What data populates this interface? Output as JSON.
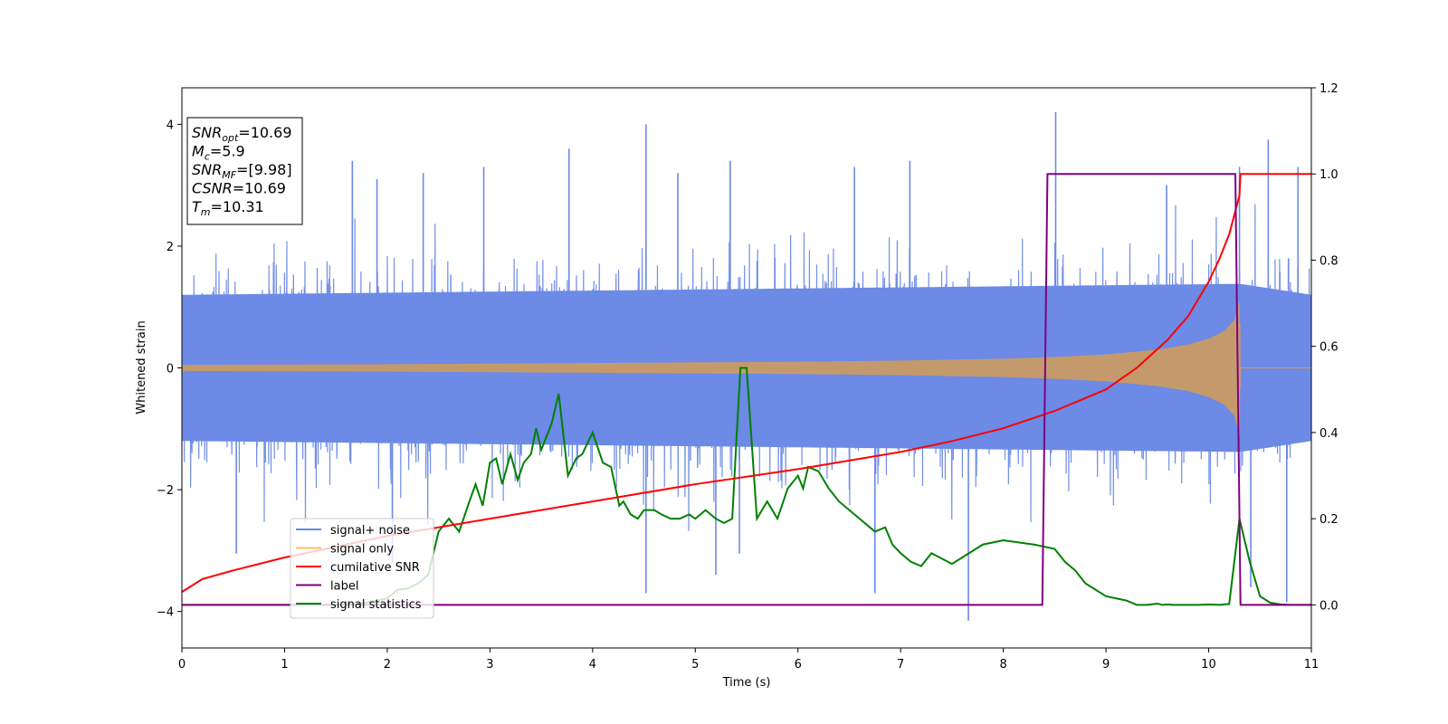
{
  "chart_data": {
    "type": "line",
    "xlabel": "Time (s)",
    "ylabel": "Whitened strain",
    "xlim": [
      0,
      11
    ],
    "ylim": [
      -4.6,
      4.6
    ],
    "y2lim": [
      -0.1,
      1.2
    ],
    "x_ticks": [
      "0",
      "1",
      "2",
      "3",
      "4",
      "5",
      "6",
      "7",
      "8",
      "9",
      "10",
      "11"
    ],
    "y_ticks": [
      "−4",
      "−2",
      "0",
      "2",
      "4"
    ],
    "y2_ticks": [
      "0.0",
      "0.2",
      "0.4",
      "0.6",
      "0.8",
      "1.0",
      "1.2"
    ],
    "info_box": {
      "snr_opt": {
        "main": "SNR",
        "sub": "opt",
        "value": "=10.69"
      },
      "mc": {
        "main": "M",
        "sub": "c",
        "value": "=5.9"
      },
      "snr_mf": {
        "main": "SNR",
        "sub": "MF",
        "value": "=[9.98]"
      },
      "csnr": {
        "main": "CSNR",
        "sub": "",
        "value": "=10.69"
      },
      "tm": {
        "main": "T",
        "sub": "m",
        "value": "=10.31"
      }
    },
    "legend": {
      "placement": "lower-left",
      "entries": [
        "signal+ noise",
        "signal only",
        "cumilative SNR",
        "label",
        "signal statistics"
      ]
    },
    "series": [
      {
        "name": "signal+ noise",
        "axis": "left",
        "color": "#6c8ae6",
        "noise_envelope": {
          "x": [
            0,
            10.31,
            11
          ],
          "upper": [
            2.0,
            2.3,
            2.0
          ],
          "lower": [
            -2.0,
            -2.3,
            -2.0
          ]
        },
        "spikes": [
          {
            "x": 1.66,
            "y": 3.4
          },
          {
            "x": 1.9,
            "y": 3.1
          },
          {
            "x": 2.35,
            "y": 3.2
          },
          {
            "x": 2.94,
            "y": 3.3
          },
          {
            "x": 3.77,
            "y": 3.6
          },
          {
            "x": 4.52,
            "y": 4.0
          },
          {
            "x": 4.83,
            "y": 3.2
          },
          {
            "x": 5.34,
            "y": 3.4
          },
          {
            "x": 6.55,
            "y": 3.3
          },
          {
            "x": 7.09,
            "y": 3.4
          },
          {
            "x": 8.51,
            "y": 4.2
          },
          {
            "x": 9.59,
            "y": 3.0
          },
          {
            "x": 10.3,
            "y": 3.3
          },
          {
            "x": 10.58,
            "y": 3.75
          },
          {
            "x": 10.87,
            "y": 3.3
          },
          {
            "x": 0.53,
            "y": -3.05
          },
          {
            "x": 2.05,
            "y": -3.2
          },
          {
            "x": 4.52,
            "y": -3.7
          },
          {
            "x": 5.2,
            "y": -3.4
          },
          {
            "x": 5.43,
            "y": -3.05
          },
          {
            "x": 6.75,
            "y": -3.7
          },
          {
            "x": 7.66,
            "y": -4.15
          },
          {
            "x": 10.41,
            "y": -3.6
          },
          {
            "x": 10.76,
            "y": -3.85
          }
        ]
      },
      {
        "name": "signal only",
        "axis": "left",
        "color": "#ffbf6b",
        "envelope": {
          "x": [
            0,
            2,
            4,
            6,
            7,
            8,
            8.5,
            9,
            9.5,
            9.8,
            10.0,
            10.15,
            10.25,
            10.3,
            10.31,
            11
          ],
          "amplitude": [
            0.05,
            0.06,
            0.08,
            0.1,
            0.12,
            0.15,
            0.18,
            0.22,
            0.3,
            0.38,
            0.48,
            0.6,
            0.78,
            1.1,
            0.0,
            0.0
          ]
        }
      },
      {
        "name": "cumilative SNR",
        "axis": "right",
        "color": "#ff0000",
        "x": [
          0,
          0.2,
          0.5,
          1,
          2,
          3,
          4,
          5,
          6,
          7,
          7.5,
          8,
          8.5,
          9,
          9.3,
          9.6,
          9.8,
          10.0,
          10.1,
          10.2,
          10.3,
          10.31,
          11
        ],
        "y": [
          0.03,
          0.06,
          0.08,
          0.11,
          0.16,
          0.2,
          0.24,
          0.28,
          0.315,
          0.355,
          0.38,
          0.41,
          0.45,
          0.5,
          0.55,
          0.615,
          0.67,
          0.75,
          0.8,
          0.86,
          0.95,
          1.0,
          1.0
        ]
      },
      {
        "name": "label",
        "axis": "right",
        "color": "#800080",
        "x": [
          0,
          8.38,
          8.43,
          10.26,
          10.31,
          11
        ],
        "y": [
          0.0,
          0.0,
          1.0,
          1.0,
          0.0,
          0.0
        ]
      },
      {
        "name": "signal statistics",
        "axis": "right",
        "color": "#008000",
        "x": [
          0,
          1.5,
          1.8,
          2.0,
          2.1,
          2.2,
          2.3,
          2.4,
          2.5,
          2.6,
          2.7,
          2.8,
          2.86,
          2.93,
          3.0,
          3.06,
          3.12,
          3.2,
          3.27,
          3.33,
          3.4,
          3.45,
          3.5,
          3.6,
          3.67,
          3.76,
          3.84,
          3.9,
          4.0,
          4.1,
          4.18,
          4.26,
          4.3,
          4.37,
          4.44,
          4.5,
          4.6,
          4.67,
          4.76,
          4.85,
          4.94,
          5.0,
          5.1,
          5.2,
          5.28,
          5.36,
          5.4,
          5.44,
          5.5,
          5.6,
          5.7,
          5.8,
          5.9,
          6.0,
          6.05,
          6.1,
          6.2,
          6.3,
          6.4,
          6.5,
          6.6,
          6.7,
          6.75,
          6.85,
          6.92,
          7.0,
          7.1,
          7.2,
          7.3,
          7.5,
          7.8,
          8.0,
          8.3,
          8.5,
          8.6,
          8.7,
          8.8,
          9.0,
          9.2,
          9.3,
          9.4,
          9.5,
          9.55,
          9.6,
          9.65,
          9.7,
          9.8,
          9.9,
          10.0,
          10.1,
          10.2,
          10.3,
          10.4,
          10.45,
          10.5,
          10.6,
          10.7,
          10.8,
          11
        ],
        "y": [
          0.0,
          0.0,
          0.005,
          0.015,
          0.035,
          0.038,
          0.05,
          0.07,
          0.17,
          0.2,
          0.17,
          0.24,
          0.28,
          0.23,
          0.33,
          0.34,
          0.28,
          0.35,
          0.29,
          0.33,
          0.35,
          0.41,
          0.36,
          0.42,
          0.49,
          0.3,
          0.34,
          0.35,
          0.4,
          0.33,
          0.32,
          0.23,
          0.24,
          0.21,
          0.2,
          0.22,
          0.22,
          0.21,
          0.2,
          0.2,
          0.21,
          0.2,
          0.22,
          0.2,
          0.19,
          0.2,
          0.38,
          0.55,
          0.55,
          0.2,
          0.24,
          0.2,
          0.27,
          0.3,
          0.27,
          0.32,
          0.31,
          0.27,
          0.24,
          0.22,
          0.2,
          0.18,
          0.17,
          0.18,
          0.14,
          0.12,
          0.1,
          0.09,
          0.12,
          0.095,
          0.14,
          0.15,
          0.14,
          0.13,
          0.1,
          0.08,
          0.05,
          0.02,
          0.01,
          0.0,
          0.0,
          0.003,
          0.0,
          0.001,
          0.0,
          0.0,
          0.0,
          0.0,
          0.001,
          0.0,
          0.002,
          0.2,
          0.1,
          0.06,
          0.02,
          0.005,
          0.001,
          0.0,
          0.0
        ]
      }
    ]
  }
}
